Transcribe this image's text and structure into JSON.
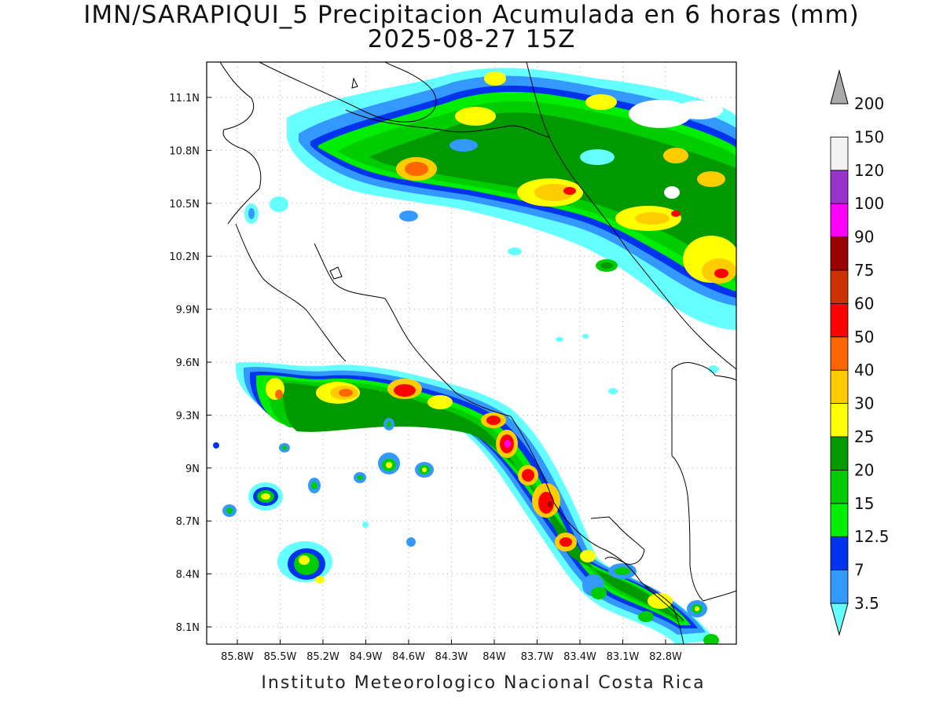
{
  "title": "IMN/SARAPIQUI_5 Precipitacion Acumulada en 6 horas (mm)",
  "subtitle": "2025-08-27 15Z",
  "footer": "Instituto Meteorologico Nacional Costa Rica",
  "x_ticks": [
    "85.8W",
    "85.5W",
    "85.2W",
    "84.9W",
    "84.6W",
    "84.3W",
    "84W",
    "83.7W",
    "83.4W",
    "83.1W",
    "82.8W"
  ],
  "y_ticks": [
    "11.1N",
    "10.8N",
    "10.5N",
    "10.2N",
    "9.9N",
    "9.6N",
    "9.3N",
    "9N",
    "8.7N",
    "8.4N",
    "8.1N"
  ],
  "colorbar": {
    "labels": [
      "3.5",
      "7",
      "12.5",
      "15",
      "20",
      "25",
      "30",
      "40",
      "50",
      "60",
      "75",
      "90",
      "100",
      "120",
      "150",
      "200"
    ],
    "colors": [
      "#66ffff",
      "#3399ff",
      "#0033ee",
      "#00ee00",
      "#00cc00",
      "#009900",
      "#ffff00",
      "#ffcc00",
      "#ff6600",
      "#ff0000",
      "#cc3300",
      "#990000",
      "#ff00ff",
      "#9933cc",
      "#f2f2f2",
      "#aaaaaa"
    ]
  }
}
